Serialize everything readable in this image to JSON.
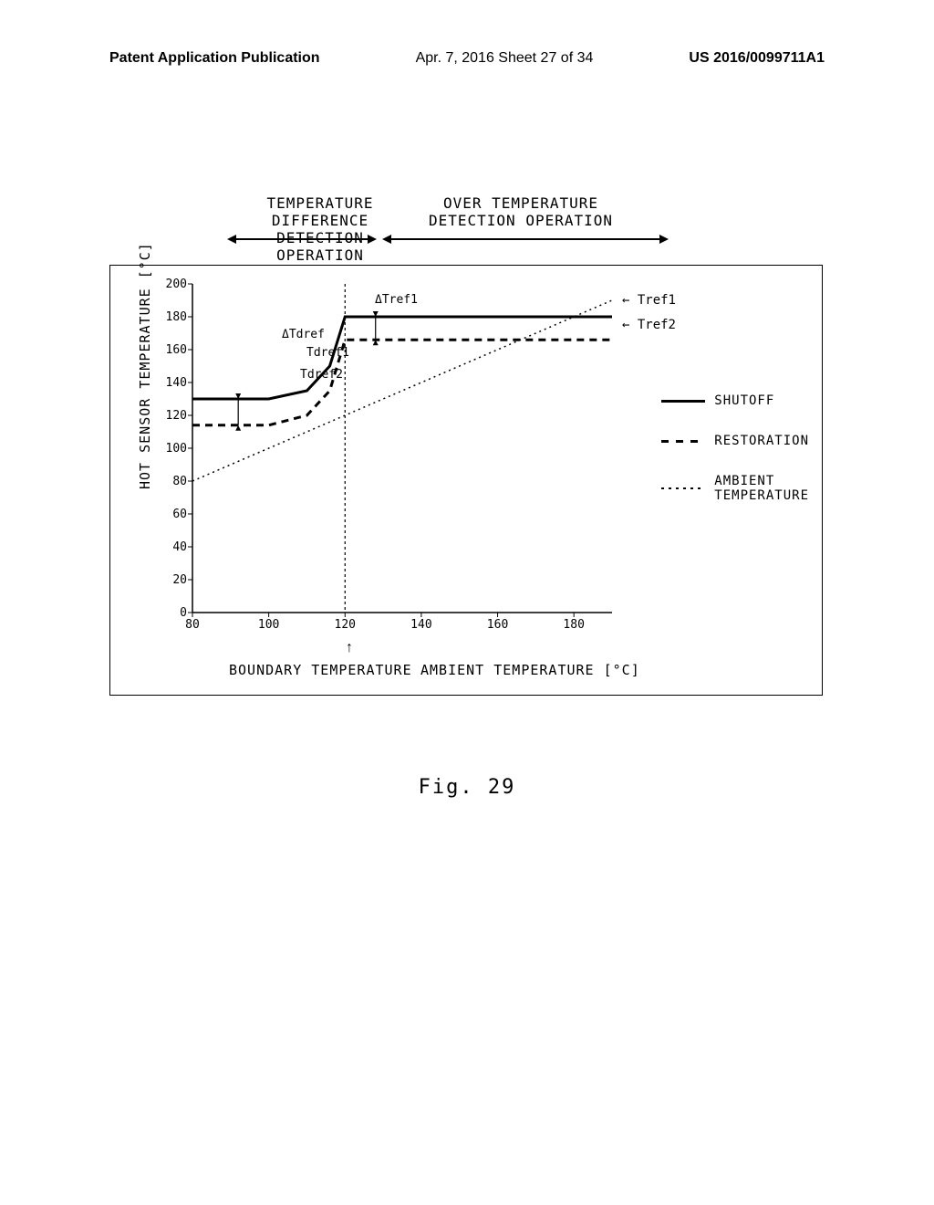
{
  "header": {
    "left": "Patent Application Publication",
    "center": "Apr. 7, 2016  Sheet 27 of 34",
    "right": "US 2016/0099711A1"
  },
  "chart": {
    "type": "line",
    "op_labels": {
      "left": "TEMPERATURE DIFFERENCE\nDETECTION OPERATION",
      "right": "OVER TEMPERATURE\nDETECTION OPERATION"
    },
    "y_label": "HOT SENSOR TEMPERATURE  [°C]",
    "x_label": "AMBIENT TEMPERATURE  [°C]",
    "boundary_label": "BOUNDARY TEMPERATURE",
    "xlim": [
      80,
      190
    ],
    "ylim": [
      0,
      200
    ],
    "xticks": [
      80,
      100,
      120,
      140,
      160,
      180
    ],
    "yticks": [
      0,
      20,
      40,
      60,
      80,
      100,
      120,
      140,
      160,
      180,
      200
    ],
    "boundary_x": 120,
    "series": {
      "shutoff": {
        "label": "SHUTOFF",
        "color": "#000000",
        "width": 3,
        "dash": "none",
        "points": [
          [
            80,
            130
          ],
          [
            100,
            130
          ],
          [
            110,
            135
          ],
          [
            116,
            150
          ],
          [
            120,
            180
          ],
          [
            190,
            180
          ]
        ]
      },
      "restoration": {
        "label": "RESTORATION",
        "color": "#000000",
        "width": 3,
        "dash": "8,6",
        "points": [
          [
            80,
            114
          ],
          [
            100,
            114
          ],
          [
            110,
            120
          ],
          [
            116,
            135
          ],
          [
            120,
            166
          ],
          [
            190,
            166
          ]
        ]
      },
      "ambient": {
        "label": "AMBIENT\nTEMPERATURE",
        "color": "#000000",
        "width": 1.5,
        "dash": "2,4",
        "points": [
          [
            80,
            80
          ],
          [
            190,
            190
          ]
        ]
      }
    },
    "legend": [
      "shutoff",
      "restoration",
      "ambient"
    ],
    "tref1_label": "← Tref1",
    "tref2_label": "← Tref2",
    "tref1_y": 180,
    "tref2_y": 166,
    "annotations": {
      "delta_tref1": "ΔTref1",
      "delta_tdref": "ΔTdref",
      "tdref1": "Tdref1",
      "tdref2": "Tdref2"
    }
  },
  "figure_caption": "Fig. 29"
}
